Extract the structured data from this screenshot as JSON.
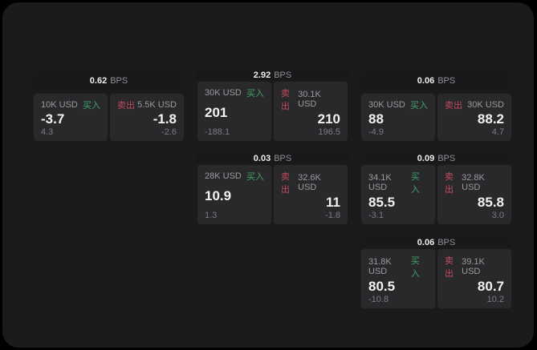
{
  "labels": {
    "bps_unit": "BPS",
    "buy": "买入",
    "sell": "卖出"
  },
  "colors": {
    "page_background": "#000000",
    "surface": "#1b1b1d",
    "card_header": "#19191b",
    "panel": "#29292c",
    "buy": "#3fa36c",
    "sell": "#c14b62",
    "price_text": "#f2f2f2",
    "muted_text": "#9b9b9e"
  },
  "cards": [
    {
      "spread": "0.62",
      "buy": {
        "amount": "10K USD",
        "price": "-3.7",
        "delta": "4.3"
      },
      "sell": {
        "amount": "5.5K USD",
        "price": "-1.8",
        "delta": "-2.6"
      }
    },
    {
      "spread": "2.92",
      "buy": {
        "amount": "30K USD",
        "price": "201",
        "delta": "-188.1"
      },
      "sell": {
        "amount": "30.1K USD",
        "price": "210",
        "delta": "196.5"
      }
    },
    {
      "spread": "0.06",
      "buy": {
        "amount": "30K USD",
        "price": "88",
        "delta": "-4.9"
      },
      "sell": {
        "amount": "30K USD",
        "price": "88.2",
        "delta": "4.7"
      }
    },
    {
      "spread": "0.03",
      "buy": {
        "amount": "28K USD",
        "price": "10.9",
        "delta": "1.3"
      },
      "sell": {
        "amount": "32.6K USD",
        "price": "11",
        "delta": "-1.8"
      }
    },
    {
      "spread": "0.09",
      "buy": {
        "amount": "34.1K USD",
        "price": "85.5",
        "delta": "-3.1"
      },
      "sell": {
        "amount": "32.8K USD",
        "price": "85.8",
        "delta": "3.0"
      }
    },
    {
      "spread": "0.06",
      "buy": {
        "amount": "31.8K USD",
        "price": "80.5",
        "delta": "-10.8"
      },
      "sell": {
        "amount": "39.1K USD",
        "price": "80.7",
        "delta": "10.2"
      }
    }
  ]
}
